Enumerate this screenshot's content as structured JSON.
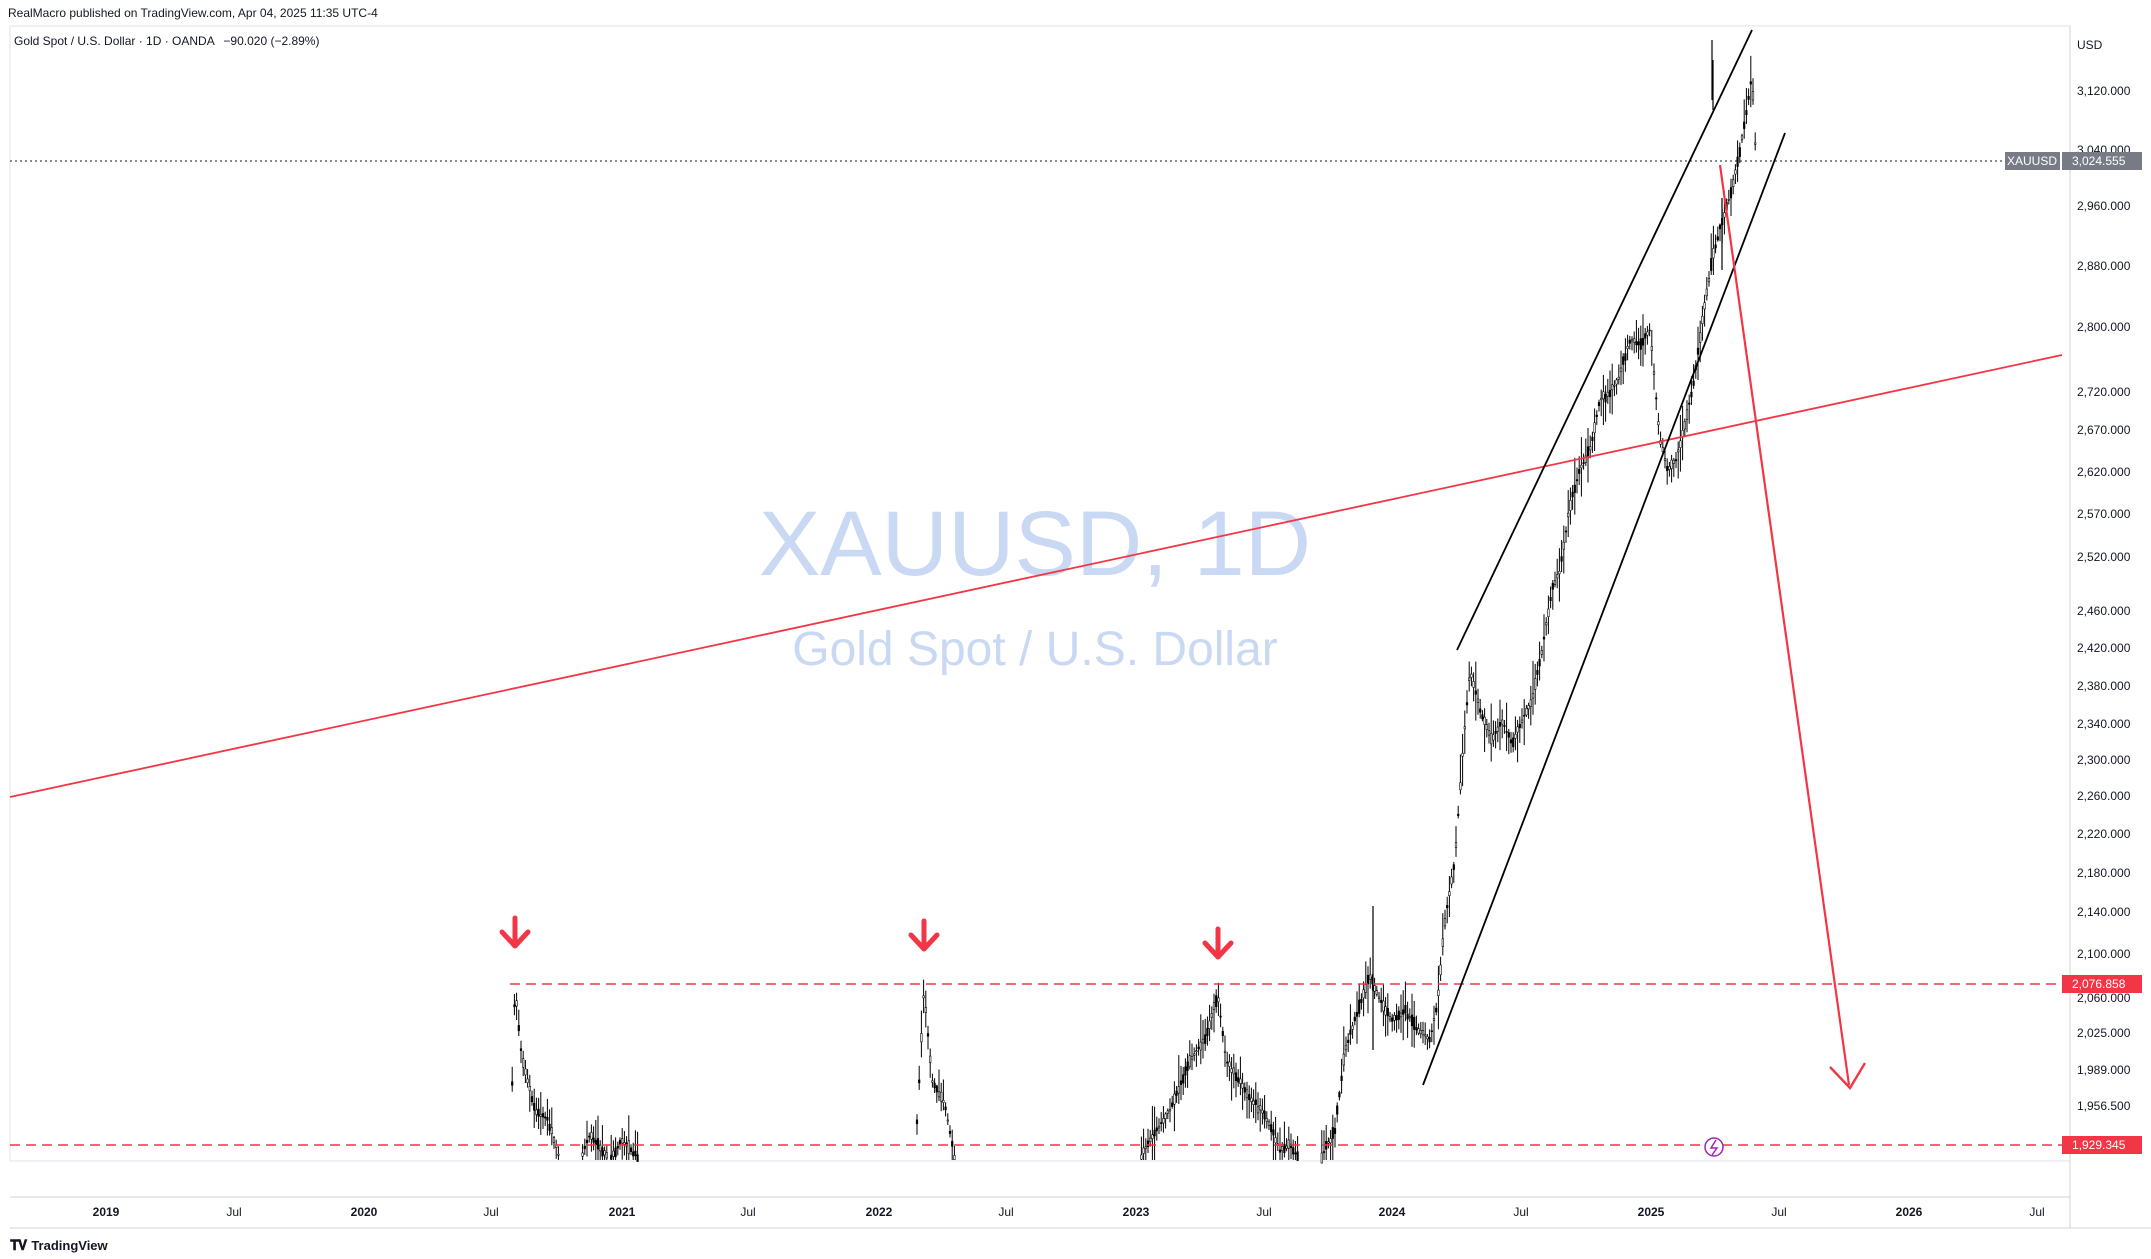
{
  "header": {
    "published": "RealMacro published on TradingView.com, Apr 04, 2025 11:35 UTC-4",
    "symbol_line": "Gold Spot / U.S. Dollar · 1D · OANDA",
    "change": "−90.020 (−2.89%)"
  },
  "watermark": {
    "line1": "XAUUSD, 1D",
    "line2": "Gold Spot / U.S. Dollar"
  },
  "footer": {
    "brand": "TradingView",
    "brand_icon": "tradingview-logo-icon"
  },
  "colors": {
    "accent_red": "#f23645",
    "price_label_bg": "#787b86",
    "watermark": "#c9d8f3",
    "candles": "#000000"
  },
  "chart_data": {
    "type": "candlestick",
    "currency": "USD",
    "y_axis": {
      "ticks": [
        "3,120.000",
        "3,040.000",
        "2,960.000",
        "2,880.000",
        "2,800.000",
        "2,720.000",
        "2,670.000",
        "2,620.000",
        "2,570.000",
        "2,520.000",
        "2,460.000",
        "2,420.000",
        "2,380.000",
        "2,340.000",
        "2,300.000",
        "2,260.000",
        "2,220.000",
        "2,180.000",
        "2,140.000",
        "2,100.000",
        "2,060.000",
        "2,025.000",
        "1,989.000",
        "1,956.500"
      ]
    },
    "x_axis": {
      "ticks": [
        "2019",
        "Jul",
        "2020",
        "Jul",
        "2021",
        "Jul",
        "2022",
        "Jul",
        "2023",
        "Jul",
        "2024",
        "Jul",
        "2025",
        "Jul",
        "2026",
        "Jul"
      ]
    },
    "last_price": {
      "symbol": "XAUUSD",
      "value": "3,024.555"
    },
    "levels": [
      {
        "value": "2,076.858",
        "style": "dashed",
        "color": "#f23645"
      },
      {
        "value": "1,929.345",
        "style": "dashed",
        "color": "#f23645"
      }
    ],
    "annotations": [
      {
        "type": "arrow-down",
        "near": "2020-08",
        "meaning": "resistance touch"
      },
      {
        "type": "arrow-down",
        "near": "2022-03",
        "meaning": "resistance touch"
      },
      {
        "type": "arrow-down",
        "near": "2023-05",
        "meaning": "resistance touch"
      },
      {
        "type": "ascending-channel",
        "from": "2024-02",
        "to": "2025-06"
      },
      {
        "type": "trendline",
        "color": "#f23645",
        "from": "2018-09",
        "to": "2026-08"
      },
      {
        "type": "projection-arrow",
        "from": "2025-04",
        "to": "2025-09",
        "target_approx": 1989
      }
    ]
  }
}
